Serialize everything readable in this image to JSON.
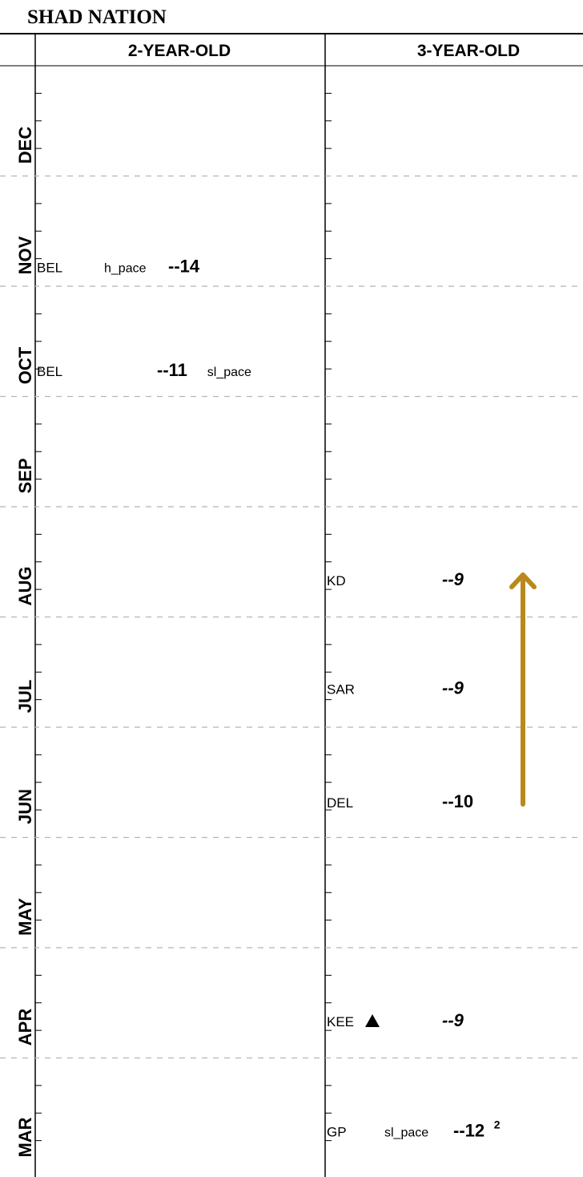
{
  "chart_data": {
    "type": "table",
    "title": "SHAD NATION",
    "columns": [
      "2-YEAR-OLD",
      "3-YEAR-OLD"
    ],
    "months": [
      "DEC",
      "NOV",
      "OCT",
      "SEP",
      "AUG",
      "JUL",
      "JUN",
      "MAY",
      "APR",
      "MAR"
    ],
    "entries": [
      {
        "column": "2-YEAR-OLD",
        "month": "NOV",
        "track": "BEL",
        "pace_before": "h_pace",
        "figure": "--14",
        "pace_after": "",
        "italic": false,
        "superscript": "",
        "marker": ""
      },
      {
        "column": "2-YEAR-OLD",
        "month": "OCT",
        "track": "BEL",
        "pace_before": "",
        "figure": "--11",
        "pace_after": "sl_pace",
        "italic": false,
        "superscript": "",
        "marker": ""
      },
      {
        "column": "3-YEAR-OLD",
        "month": "AUG",
        "track": "KD",
        "pace_before": "",
        "figure": "--9",
        "pace_after": "",
        "italic": true,
        "superscript": "",
        "marker": ""
      },
      {
        "column": "3-YEAR-OLD",
        "month": "JUL",
        "track": "SAR",
        "pace_before": "",
        "figure": "--9",
        "pace_after": "",
        "italic": true,
        "superscript": "",
        "marker": ""
      },
      {
        "column": "3-YEAR-OLD",
        "month": "JUN",
        "track": "DEL",
        "pace_before": "",
        "figure": "--10",
        "pace_after": "",
        "italic": false,
        "superscript": "",
        "marker": ""
      },
      {
        "column": "3-YEAR-OLD",
        "month": "APR",
        "track": "KEE",
        "pace_before": "",
        "figure": "--9",
        "pace_after": "",
        "italic": true,
        "superscript": "",
        "marker": "triangle"
      },
      {
        "column": "3-YEAR-OLD",
        "month": "MAR",
        "track": "GP",
        "pace_before": "sl_pace",
        "figure": "--12",
        "pace_after": "",
        "italic": false,
        "superscript": "2",
        "marker": ""
      }
    ],
    "annotation": {
      "type": "arrow",
      "direction": "up",
      "color": "#B8891C",
      "from_month": "JUN",
      "to_month": "AUG",
      "column": "3-YEAR-OLD"
    }
  }
}
